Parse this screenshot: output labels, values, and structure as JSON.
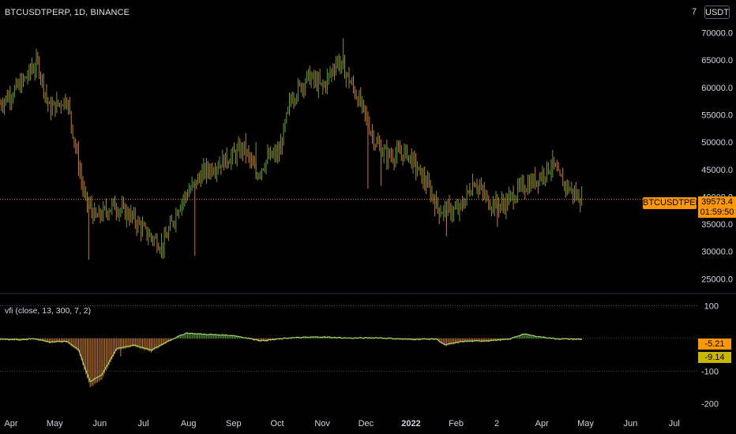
{
  "header": {
    "title": "BTCUSDTPERP, 1D, BINANCE",
    "currency_button": "USDT",
    "top_axis_label": "7"
  },
  "indicator": {
    "label": "vfi (close, 13, 300, 7, 2)"
  },
  "price_tags": {
    "symbol": "BTCUSDTPERP",
    "last_price": "39573.4",
    "countdown": "01:59:50",
    "vfi_value": "-5.21",
    "signal_value": "-9.14"
  },
  "colors": {
    "bull": "#5b9f3a",
    "bear": "#c97b2c",
    "price_tag": "#ff9800",
    "signal_tag": "#c9b800",
    "vfi_line": "#a6d86c",
    "background": "#000000"
  },
  "chart_data": [
    {
      "type": "candlestick",
      "title": "BTCUSDTPERP, 1D, BINANCE",
      "y_ticks": [
        "70000.0",
        "65000.0",
        "60000.0",
        "55000.0",
        "50000.0",
        "45000.0",
        "40000.0",
        "35000.0",
        "30000.0",
        "25000.0"
      ],
      "y_tick_values": [
        70000,
        65000,
        60000,
        55000,
        50000,
        45000,
        40000,
        35000,
        30000,
        25000
      ],
      "ylim": [
        22600,
        76000
      ],
      "x_ticks": [
        "Apr",
        "May",
        "Jun",
        "Jul",
        "Aug",
        "Sep",
        "Oct",
        "Nov",
        "Dec",
        "2022",
        "Feb",
        "2",
        "Apr",
        "May",
        "Jun",
        "Jul"
      ],
      "x_tick_days": [
        0,
        30,
        61,
        91,
        122,
        153,
        183,
        214,
        244,
        275,
        306,
        334,
        365,
        395,
        426,
        456
      ],
      "xlim": [
        0,
        480
      ],
      "last_price": 39573.4,
      "keypoints": [
        {
          "day": 0,
          "price": 57000
        },
        {
          "day": 14,
          "price": 60500
        },
        {
          "day": 26,
          "price": 64500
        },
        {
          "day": 34,
          "price": 56000
        },
        {
          "day": 46,
          "price": 58000
        },
        {
          "day": 58,
          "price": 40000
        },
        {
          "day": 66,
          "price": 36000
        },
        {
          "day": 78,
          "price": 38500
        },
        {
          "day": 90,
          "price": 36500
        },
        {
          "day": 100,
          "price": 33500
        },
        {
          "day": 112,
          "price": 31000
        },
        {
          "day": 124,
          "price": 39000
        },
        {
          "day": 140,
          "price": 44500
        },
        {
          "day": 160,
          "price": 47500
        },
        {
          "day": 168,
          "price": 49000
        },
        {
          "day": 176,
          "price": 44000
        },
        {
          "day": 184,
          "price": 47000
        },
        {
          "day": 192,
          "price": 48000
        },
        {
          "day": 200,
          "price": 58000
        },
        {
          "day": 212,
          "price": 62000
        },
        {
          "day": 222,
          "price": 60000
        },
        {
          "day": 232,
          "price": 65000
        },
        {
          "day": 238,
          "price": 62500
        },
        {
          "day": 248,
          "price": 57000
        },
        {
          "day": 258,
          "price": 50000
        },
        {
          "day": 266,
          "price": 47500
        },
        {
          "day": 280,
          "price": 48000
        },
        {
          "day": 294,
          "price": 42000
        },
        {
          "day": 302,
          "price": 37500
        },
        {
          "day": 316,
          "price": 37500
        },
        {
          "day": 326,
          "price": 43000
        },
        {
          "day": 336,
          "price": 39000
        },
        {
          "day": 346,
          "price": 38500
        },
        {
          "day": 358,
          "price": 41500
        },
        {
          "day": 368,
          "price": 43000
        },
        {
          "day": 380,
          "price": 46000
        },
        {
          "day": 384,
          "price": 43500
        },
        {
          "day": 395,
          "price": 40500
        },
        {
          "day": 400,
          "price": 39573
        }
      ]
    },
    {
      "type": "bar",
      "title": "vfi (close, 13, 300, 7, 2)",
      "y_ticks": [
        "100",
        "-100",
        "-200"
      ],
      "y_tick_values": [
        100,
        -100,
        -200
      ],
      "ylim": [
        -220,
        130
      ],
      "vfi_last": -5.21,
      "signal_last": -9.14,
      "keypoints": [
        {
          "day": 0,
          "vfi": -5
        },
        {
          "day": 14,
          "vfi": -6
        },
        {
          "day": 24,
          "vfi": -3
        },
        {
          "day": 34,
          "vfi": -14
        },
        {
          "day": 46,
          "vfi": -12
        },
        {
          "day": 54,
          "vfi": -40
        },
        {
          "day": 62,
          "vfi": -150
        },
        {
          "day": 70,
          "vfi": -125
        },
        {
          "day": 80,
          "vfi": -38
        },
        {
          "day": 92,
          "vfi": -24
        },
        {
          "day": 104,
          "vfi": -42
        },
        {
          "day": 116,
          "vfi": -10
        },
        {
          "day": 128,
          "vfi": 16
        },
        {
          "day": 140,
          "vfi": 12
        },
        {
          "day": 160,
          "vfi": 8
        },
        {
          "day": 180,
          "vfi": -10
        },
        {
          "day": 200,
          "vfi": 0
        },
        {
          "day": 220,
          "vfi": 3
        },
        {
          "day": 240,
          "vfi": -1
        },
        {
          "day": 260,
          "vfi": 0
        },
        {
          "day": 280,
          "vfi": -5
        },
        {
          "day": 300,
          "vfi": -4
        },
        {
          "day": 306,
          "vfi": -24
        },
        {
          "day": 318,
          "vfi": -12
        },
        {
          "day": 334,
          "vfi": -10
        },
        {
          "day": 350,
          "vfi": -5
        },
        {
          "day": 360,
          "vfi": 13
        },
        {
          "day": 370,
          "vfi": 4
        },
        {
          "day": 382,
          "vfi": -3
        },
        {
          "day": 400,
          "vfi": -5.21
        }
      ]
    }
  ]
}
